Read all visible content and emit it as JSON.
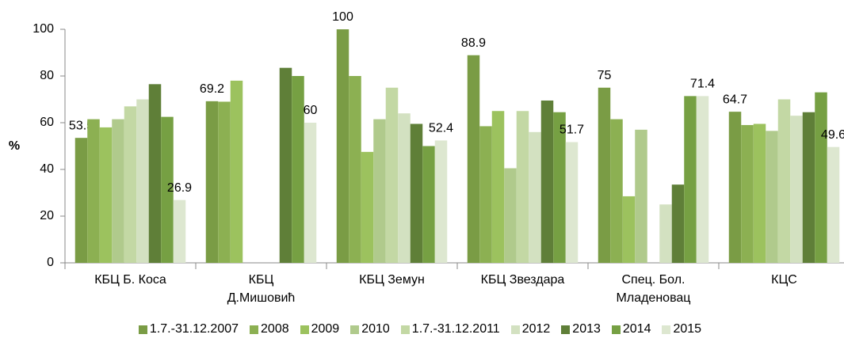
{
  "chart_data": {
    "type": "bar",
    "y_label": "%",
    "categories": [
      "КБЦ Б. Коса",
      "КБЦ\nД.Мишовић",
      "КБЦ Земун",
      "КБЦ Звездара",
      "Спец. Бол.\nМладеновац",
      "КЦС"
    ],
    "series": [
      {
        "name": "1.7.-31.12.2007",
        "color": "#7a9c45",
        "show_labels": true,
        "values": [
          53.5,
          69.2,
          100,
          88.9,
          75,
          64.7
        ]
      },
      {
        "name": "2008",
        "color": "#8cb052",
        "values": [
          61.5,
          69,
          80,
          58.5,
          61.5,
          59
        ]
      },
      {
        "name": "2009",
        "color": "#9cc25e",
        "values": [
          58,
          78,
          47.5,
          65,
          28.5,
          59.5
        ]
      },
      {
        "name": "2010",
        "color": "#b0ca8c",
        "values": [
          61.5,
          null,
          61.5,
          40.5,
          57,
          56.5
        ]
      },
      {
        "name": "1.7.-31.12.2011",
        "color": "#c3d8a4",
        "values": [
          67,
          null,
          75,
          65,
          null,
          70
        ]
      },
      {
        "name": "2012",
        "color": "#d3e1c1",
        "values": [
          70,
          null,
          64,
          56,
          25,
          63
        ]
      },
      {
        "name": "2013",
        "color": "#5f7f38",
        "values": [
          76.5,
          83.5,
          59.5,
          69.5,
          33.5,
          64.5
        ]
      },
      {
        "name": "2014",
        "color": "#76a043",
        "values": [
          62.5,
          80,
          50,
          64.5,
          71.4,
          73
        ]
      },
      {
        "name": "2015",
        "color": "#dde7d0",
        "show_labels": true,
        "values": [
          26.9,
          60,
          52.4,
          51.7,
          71.4,
          49.6
        ]
      }
    ],
    "ylim": [
      0,
      100
    ],
    "yticks": [
      0,
      20,
      40,
      60,
      80,
      100
    ],
    "grid": false,
    "legend": "bottom"
  }
}
